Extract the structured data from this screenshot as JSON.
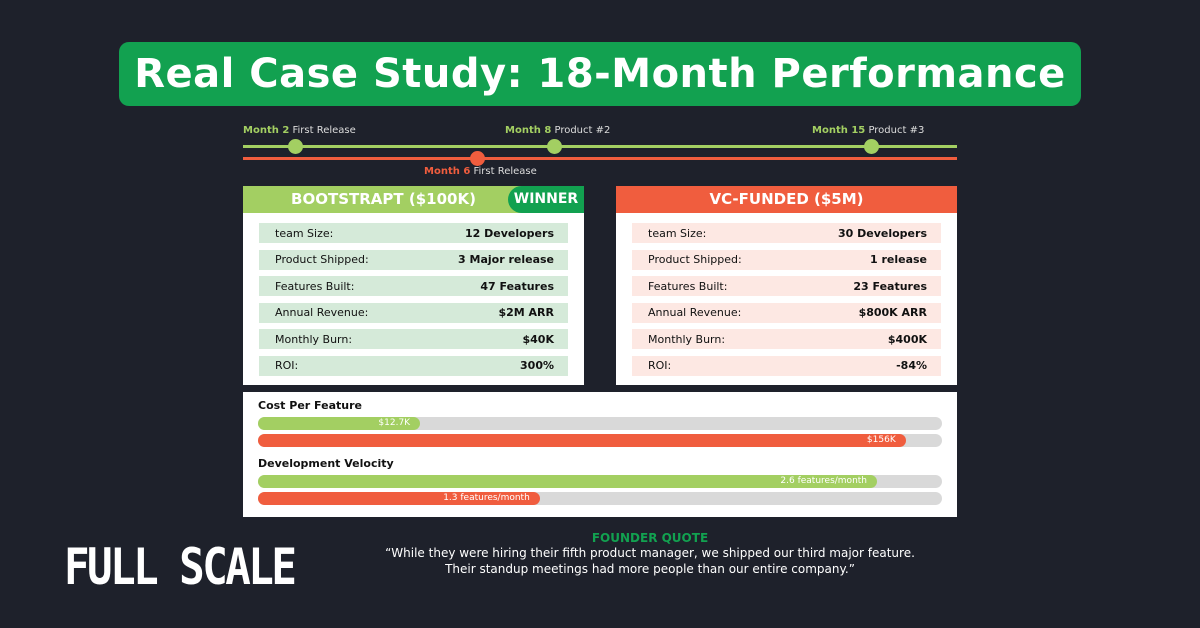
{
  "title": "Real Case Study: 18-Month Performance",
  "timeline": {
    "bootstrap": [
      {
        "month": "Month 2",
        "event": "First Release"
      },
      {
        "month": "Month 8",
        "event": "Product #2"
      },
      {
        "month": "Month 15",
        "event": "Product #3"
      }
    ],
    "vc": [
      {
        "month": "Month 6",
        "event": "First Release"
      }
    ]
  },
  "colors": {
    "green": "#a3cf62",
    "dark_green": "#12a150",
    "red": "#f05d3e",
    "background": "#1e212b"
  },
  "bootstrap": {
    "title": "BOOTSTRAPT ($100K)",
    "badge": "WINNER",
    "rows": [
      {
        "label": "team Size:",
        "value": "12 Developers"
      },
      {
        "label": "Product Shipped:",
        "value": "3 Major release"
      },
      {
        "label": "Features Built:",
        "value": "47 Features"
      },
      {
        "label": "Annual Revenue:",
        "value": "$2M ARR"
      },
      {
        "label": "Monthly Burn:",
        "value": "$40K"
      },
      {
        "label": "ROI:",
        "value": "300%"
      }
    ]
  },
  "vc": {
    "title": "VC-FUNDED ($5M)",
    "rows": [
      {
        "label": "team Size:",
        "value": "30 Developers"
      },
      {
        "label": "Product Shipped:",
        "value": "1 release"
      },
      {
        "label": "Features Built:",
        "value": "23 Features"
      },
      {
        "label": "Annual Revenue:",
        "value": "$800K ARR"
      },
      {
        "label": "Monthly Burn:",
        "value": "$400K"
      },
      {
        "label": "ROI:",
        "value": "-84%"
      }
    ]
  },
  "metrics": [
    {
      "title": "Cost Per Feature",
      "bars": [
        {
          "label": "$12.7K",
          "percent": 23.7,
          "color": "#a3cf62"
        },
        {
          "label": "$156K",
          "percent": 94.7,
          "color": "#f05d3e"
        }
      ]
    },
    {
      "title": "Development Velocity",
      "bars": [
        {
          "label": "2.6 features/month",
          "percent": 90.5,
          "color": "#a3cf62"
        },
        {
          "label": "1.3 features/month",
          "percent": 41.2,
          "color": "#f05d3e"
        }
      ]
    }
  ],
  "quote": {
    "heading": "FOUNDER QUOTE",
    "line1": "“While  they were hiring their fifth product manager, we shipped our third major feature.",
    "line2": "Their standup meetings had more people than our entire company.”"
  },
  "logo": "FULL SCALE"
}
